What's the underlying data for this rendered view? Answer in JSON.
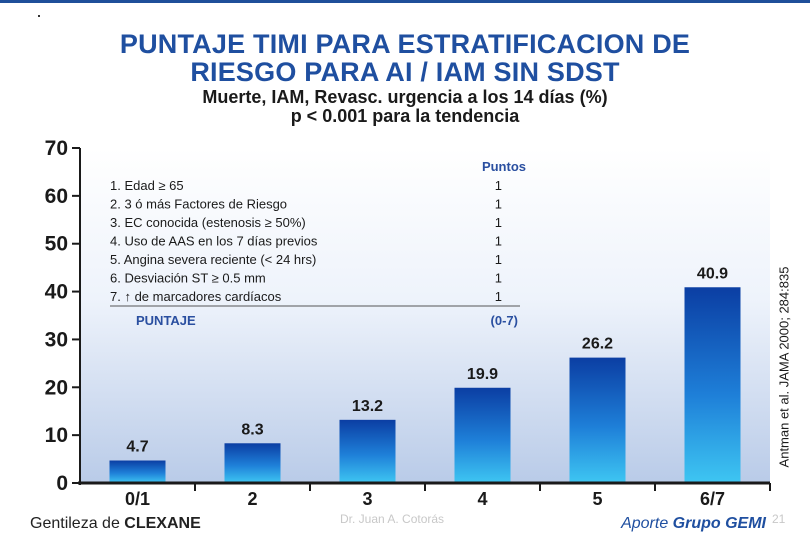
{
  "header": {
    "title_line1": "PUNTAJE TIMI PARA ESTRATIFICACION DE",
    "title_line2": "RIESGO PARA AI / IAM SIN SDST",
    "subtitle_line1": "Muerte, IAM, Revasc. urgencia a los 14 días (%)",
    "subtitle_line2": "p < 0.001 para la tendencia"
  },
  "legend_table": {
    "header": "Puntos",
    "items": [
      {
        "label": "1. Edad ≥ 65",
        "points": "1"
      },
      {
        "label": "2. 3 ó más Factores de Riesgo",
        "points": "1"
      },
      {
        "label": "3. EC conocida (estenosis ≥ 50%)",
        "points": "1"
      },
      {
        "label": "4. Uso de AAS en los 7 días previos",
        "points": "1"
      },
      {
        "label": "5. Angina severa reciente (< 24 hrs)",
        "points": "1"
      },
      {
        "label": "6. Desviación ST ≥ 0.5 mm",
        "points": "1"
      },
      {
        "label": "7. ↑ de marcadores cardíacos",
        "points": "1"
      }
    ],
    "total_label": "PUNTAJE",
    "total_range": "(0-7)"
  },
  "chart_data": {
    "type": "bar",
    "categories": [
      "0/1",
      "2",
      "3",
      "4",
      "5",
      "6/7"
    ],
    "values": [
      4.7,
      8.3,
      13.2,
      19.9,
      26.2,
      40.9
    ],
    "value_labels": [
      "4.7",
      "8.3",
      "13.2",
      "19.9",
      "26.2",
      "40.9"
    ],
    "ylim": [
      0,
      70
    ],
    "yticks": [
      0,
      10,
      20,
      30,
      40,
      50,
      60,
      70
    ],
    "title": "Muerte, IAM, Revasc. urgencia a los 14 días (%)",
    "xlabel": "",
    "ylabel": ""
  },
  "footer": {
    "courtesy_prefix": "Gentileza de ",
    "courtesy_brand": "CLEXANE",
    "contribution_prefix": "Aporte ",
    "contribution_brand": "Grupo GEMI",
    "watermark": "Dr. Juan A. Cotorás",
    "page_number": "21",
    "citation": "Antman et al. JAMA 2000; 284:835"
  },
  "colors": {
    "title": "#1f4fa0",
    "bar_top": "#0a3a9e",
    "bar_bottom": "#33c0f0",
    "axis": "#1a1a1a",
    "legend_header": "#2a4fa0"
  }
}
